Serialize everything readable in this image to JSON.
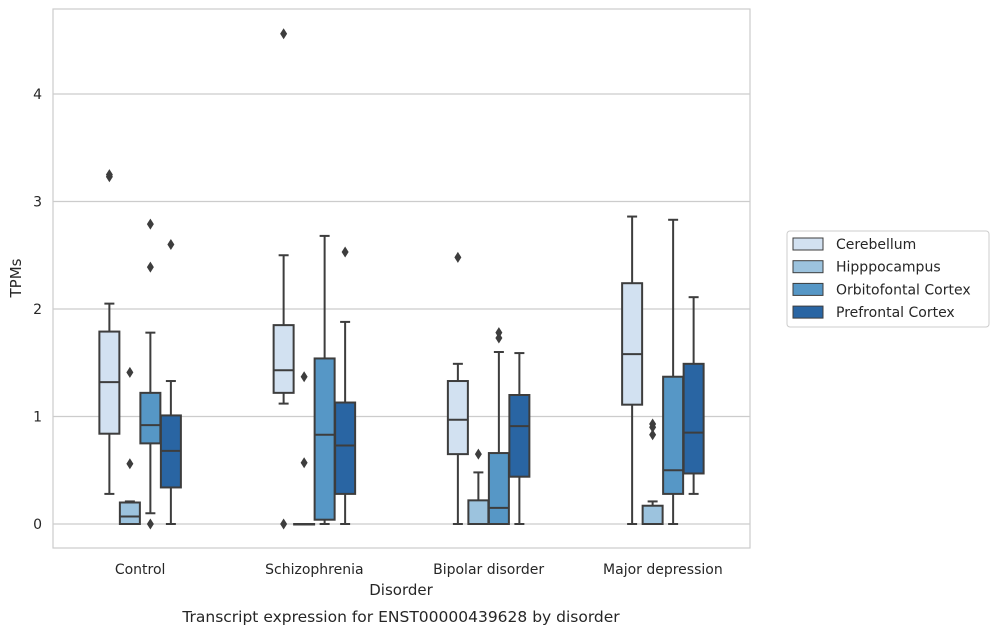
{
  "chart_data": {
    "type": "box",
    "title": "",
    "caption": "Transcript expression for ENST00000439628 by disorder",
    "xlabel": "Disorder",
    "ylabel": "TPMs",
    "ylim": [
      -0.22,
      4.8
    ],
    "yticks": [
      0,
      1,
      2,
      3,
      4
    ],
    "grid": "horizontal",
    "legend_position": "right",
    "categories": [
      "Control",
      "Schizophrenia",
      "Bipolar disorder",
      "Major depression"
    ],
    "series": [
      {
        "name": "Cerebellum",
        "color": "#d2e1f1",
        "boxes": [
          {
            "whislo": 0.28,
            "q1": 0.84,
            "med": 1.32,
            "q3": 1.79,
            "whishi": 2.05,
            "fliers": [
              3.23,
              3.25
            ]
          },
          {
            "whislo": 1.12,
            "q1": 1.22,
            "med": 1.43,
            "q3": 1.85,
            "whishi": 2.5,
            "fliers": [
              0.0,
              4.56
            ]
          },
          {
            "whislo": 0.0,
            "q1": 0.65,
            "med": 0.97,
            "q3": 1.33,
            "whishi": 1.49,
            "fliers": [
              2.48
            ]
          },
          {
            "whislo": 0.0,
            "q1": 1.11,
            "med": 1.58,
            "q3": 2.24,
            "whishi": 2.86,
            "fliers": []
          }
        ]
      },
      {
        "name": "Hipppocampus",
        "color": "#9cc3de",
        "boxes": [
          {
            "whislo": 0.0,
            "q1": 0.0,
            "med": 0.07,
            "q3": 0.2,
            "whishi": 0.21,
            "fliers": [
              0.56,
              1.41
            ]
          },
          {
            "whislo": 0.0,
            "q1": 0.0,
            "med": 0.0,
            "q3": 0.0,
            "whishi": 0.0,
            "fliers": [
              0.57,
              1.37
            ]
          },
          {
            "whislo": 0.0,
            "q1": 0.0,
            "med": 0.0,
            "q3": 0.22,
            "whishi": 0.48,
            "fliers": [
              0.65
            ]
          },
          {
            "whislo": 0.0,
            "q1": 0.0,
            "med": 0.0,
            "q3": 0.17,
            "whishi": 0.21,
            "fliers": [
              0.83,
              0.9,
              0.93
            ]
          }
        ]
      },
      {
        "name": "Orbitofontal Cortex",
        "color": "#5697c6",
        "boxes": [
          {
            "whislo": 0.1,
            "q1": 0.75,
            "med": 0.92,
            "q3": 1.22,
            "whishi": 1.78,
            "fliers": [
              0.0,
              2.39,
              2.79
            ]
          },
          {
            "whislo": 0.0,
            "q1": 0.04,
            "med": 0.83,
            "q3": 1.54,
            "whishi": 2.68,
            "fliers": []
          },
          {
            "whislo": 0.0,
            "q1": 0.0,
            "med": 0.15,
            "q3": 0.66,
            "whishi": 1.6,
            "fliers": [
              1.73,
              1.78
            ]
          },
          {
            "whislo": 0.0,
            "q1": 0.28,
            "med": 0.5,
            "q3": 1.37,
            "whishi": 2.83,
            "fliers": []
          }
        ]
      },
      {
        "name": "Prefrontal Cortex",
        "color": "#2965a3",
        "boxes": [
          {
            "whislo": 0.0,
            "q1": 0.34,
            "med": 0.68,
            "q3": 1.01,
            "whishi": 1.33,
            "fliers": [
              2.6
            ]
          },
          {
            "whislo": 0.0,
            "q1": 0.28,
            "med": 0.73,
            "q3": 1.13,
            "whishi": 1.88,
            "fliers": [
              2.53
            ]
          },
          {
            "whislo": 0.0,
            "q1": 0.44,
            "med": 0.91,
            "q3": 1.2,
            "whishi": 1.59,
            "fliers": []
          },
          {
            "whislo": 0.28,
            "q1": 0.47,
            "med": 0.85,
            "q3": 1.49,
            "whishi": 2.11,
            "fliers": []
          }
        ]
      }
    ]
  },
  "colors": {
    "frame": "#cccccc",
    "grid": "#cccccc",
    "line": "#3d3d3d"
  }
}
